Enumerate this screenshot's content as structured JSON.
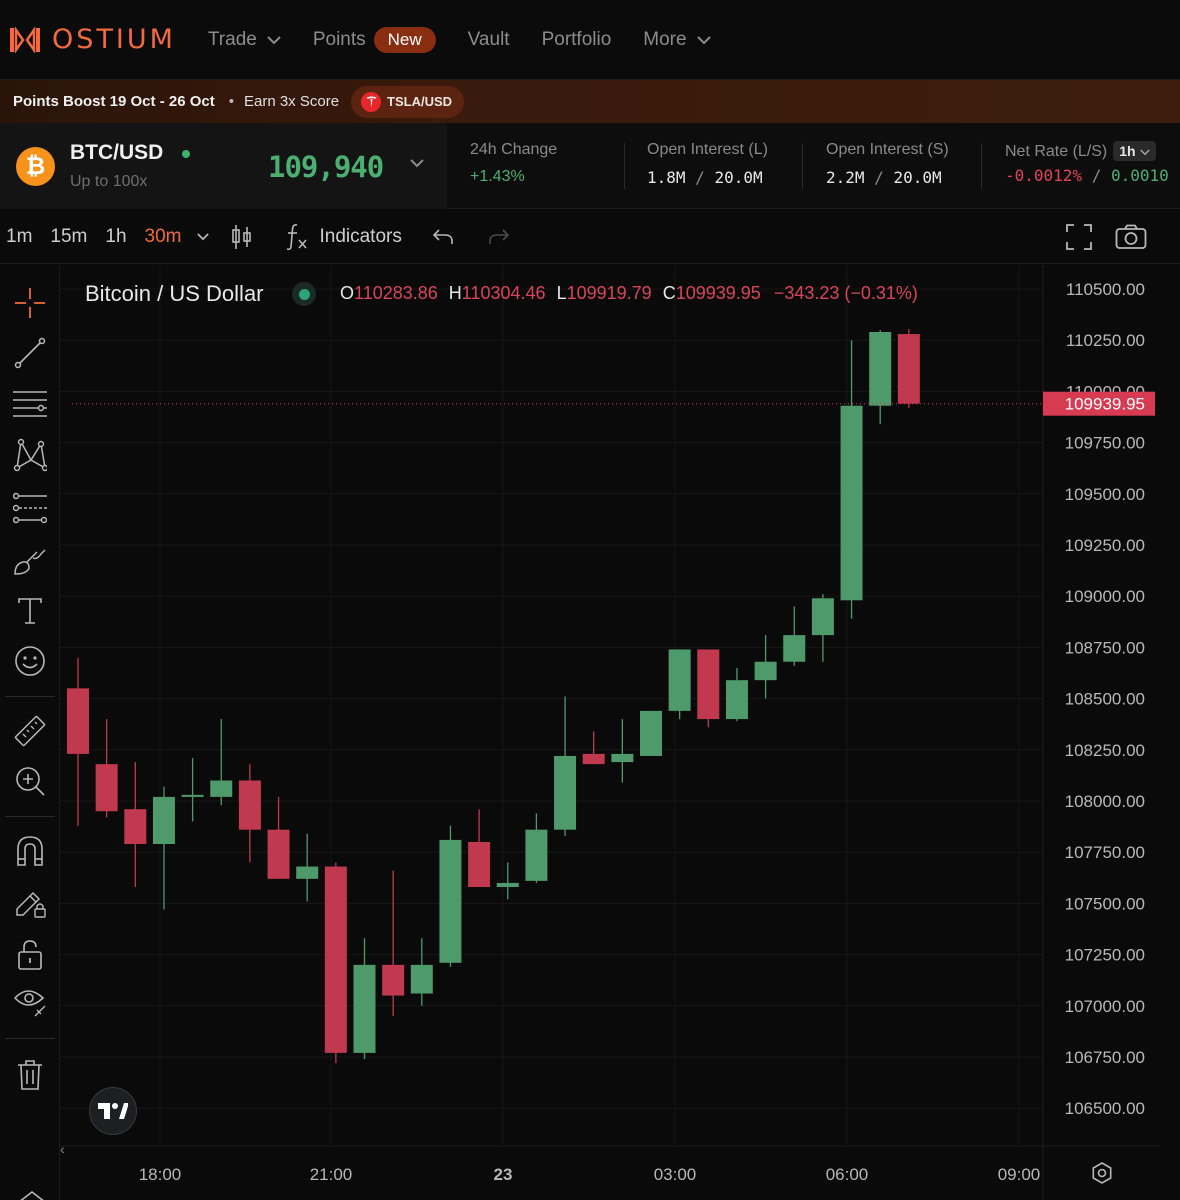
{
  "nav": {
    "brand": "OSTIUM",
    "items": [
      {
        "label": "Trade",
        "dropdown": true
      },
      {
        "label": "Points",
        "badge": "New"
      },
      {
        "label": "Vault"
      },
      {
        "label": "Portfolio"
      },
      {
        "label": "More",
        "dropdown": true
      }
    ]
  },
  "promo": {
    "title": "Points Boost 19 Oct - 26 Oct",
    "bullet": "•",
    "text": "Earn 3x Score",
    "pill": "TSLA/USD",
    "pill_icon": "tesla-icon"
  },
  "market": {
    "pair": "BTC/USD",
    "leverage": "Up to 100x",
    "price": "109,940",
    "stats": {
      "change_label": "24h Change",
      "change_value": "+1.43%",
      "oi_long_label": "Open Interest (L)",
      "oi_long_value": "1.8M / 20.0M",
      "oi_long_used": "1.8M",
      "oi_long_cap": "20.0M",
      "oi_short_label": "Open Interest (S)",
      "oi_short_used": "2.2M",
      "oi_short_cap": "20.0M",
      "rate_label": "Net Rate (L/S)",
      "rate_period": "1h",
      "rate_long": "-0.0012%",
      "rate_short": "0.0010"
    }
  },
  "toolbar": {
    "timeframes": [
      "1m",
      "15m",
      "1h",
      "30m"
    ],
    "active_timeframe": "30m",
    "indicators_label": "Indicators",
    "fx_glyph": "f"
  },
  "legend": {
    "title": "Bitcoin / US Dollar",
    "o_key": "O",
    "o": "110283.86",
    "h_key": "H",
    "h": "110304.46",
    "l_key": "L",
    "l": "109919.79",
    "c_key": "C",
    "c": "109939.95",
    "change": "−343.23 (−0.31%)"
  },
  "colors": {
    "up": "#4e9a6b",
    "down": "#c0394f",
    "brand": "#f26a3d",
    "price_tag": "#d63b52"
  },
  "chart_data": {
    "type": "candlestick",
    "interval": "30m",
    "x_labels": [
      "18:00",
      "21:00",
      "23",
      "03:00",
      "06:00",
      "09:00"
    ],
    "x_label_bold": "23",
    "y_ticks": [
      "110500.00",
      "110250.00",
      "110000.00",
      "109750.00",
      "109500.00",
      "109250.00",
      "109000.00",
      "108750.00",
      "108500.00",
      "108250.00",
      "108000.00",
      "107750.00",
      "107500.00",
      "107250.00",
      "107000.00",
      "106750.00",
      "106500.00"
    ],
    "ylim": [
      106350,
      110600
    ],
    "last_price": "109939.95",
    "last_price_value": 109939.95,
    "candles": [
      {
        "o": 108550,
        "h": 108700,
        "l": 107880,
        "c": 108230
      },
      {
        "o": 108180,
        "h": 108400,
        "l": 107920,
        "c": 107950
      },
      {
        "o": 107960,
        "h": 108190,
        "l": 107580,
        "c": 107790
      },
      {
        "o": 107790,
        "h": 108070,
        "l": 107470,
        "c": 108020
      },
      {
        "o": 108020,
        "h": 108210,
        "l": 107900,
        "c": 108030
      },
      {
        "o": 108020,
        "h": 108400,
        "l": 107980,
        "c": 108100
      },
      {
        "o": 108100,
        "h": 108180,
        "l": 107700,
        "c": 107860
      },
      {
        "o": 107860,
        "h": 108020,
        "l": 107620,
        "c": 107620
      },
      {
        "o": 107620,
        "h": 107840,
        "l": 107510,
        "c": 107680
      },
      {
        "o": 107680,
        "h": 107700,
        "l": 106720,
        "c": 106770
      },
      {
        "o": 106770,
        "h": 107330,
        "l": 106740,
        "c": 107200
      },
      {
        "o": 107200,
        "h": 107660,
        "l": 106950,
        "c": 107050
      },
      {
        "o": 107060,
        "h": 107330,
        "l": 107000,
        "c": 107200
      },
      {
        "o": 107210,
        "h": 107880,
        "l": 107190,
        "c": 107810
      },
      {
        "o": 107800,
        "h": 107960,
        "l": 107600,
        "c": 107580
      },
      {
        "o": 107580,
        "h": 107700,
        "l": 107520,
        "c": 107600
      },
      {
        "o": 107610,
        "h": 107940,
        "l": 107600,
        "c": 107860
      },
      {
        "o": 107860,
        "h": 108510,
        "l": 107830,
        "c": 108220
      },
      {
        "o": 108230,
        "h": 108340,
        "l": 108180,
        "c": 108180
      },
      {
        "o": 108190,
        "h": 108400,
        "l": 108090,
        "c": 108230
      },
      {
        "o": 108220,
        "h": 108440,
        "l": 108220,
        "c": 108440
      },
      {
        "o": 108440,
        "h": 108740,
        "l": 108400,
        "c": 108740
      },
      {
        "o": 108740,
        "h": 108740,
        "l": 108360,
        "c": 108400
      },
      {
        "o": 108400,
        "h": 108650,
        "l": 108390,
        "c": 108590
      },
      {
        "o": 108590,
        "h": 108810,
        "l": 108500,
        "c": 108680
      },
      {
        "o": 108680,
        "h": 108950,
        "l": 108660,
        "c": 108810
      },
      {
        "o": 108810,
        "h": 109010,
        "l": 108680,
        "c": 108990
      },
      {
        "o": 108980,
        "h": 110250,
        "l": 108890,
        "c": 109930
      },
      {
        "o": 109930,
        "h": 110300,
        "l": 109840,
        "c": 110290
      },
      {
        "o": 110280,
        "h": 110305,
        "l": 109920,
        "c": 109940
      }
    ]
  }
}
